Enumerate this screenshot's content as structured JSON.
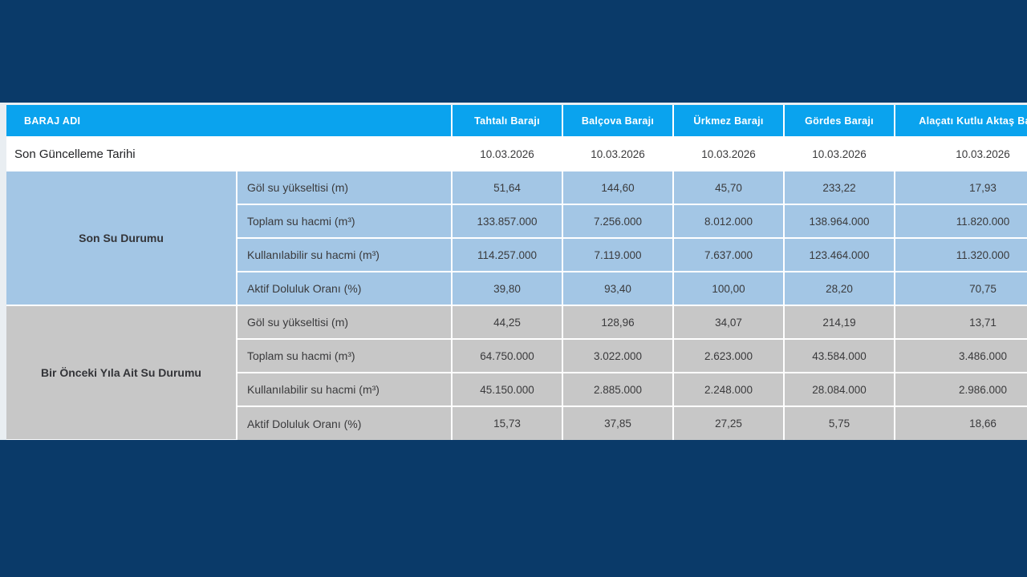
{
  "colors": {
    "page_background": "#0a3a69",
    "header_blue": "#0aa3ee",
    "section_recent_blue": "#a3c6e5",
    "section_previous_gray": "#c7c7c7",
    "gutter_light": "#e9eef2",
    "cell_border": "#ffffff",
    "text_dark": "#3a3a3c"
  },
  "table": {
    "header": {
      "label_col": "BARAJ ADI",
      "columns": [
        "Tahtalı Barajı",
        "Balçova Barajı",
        "Ürkmez Barajı",
        "Gördes Barajı",
        "Alaçatı Kutlu Aktaş Barajı"
      ]
    },
    "update_row": {
      "label": "Son Güncelleme Tarihi",
      "values": [
        "10.03.2026",
        "10.03.2026",
        "10.03.2026",
        "10.03.2026",
        "10.03.2026"
      ]
    },
    "sections": [
      {
        "label": "Son Su Durumu",
        "rows": [
          {
            "label": "Göl su yükseltisi (m)",
            "values": [
              "51,64",
              "144,60",
              "45,70",
              "233,22",
              "17,93"
            ]
          },
          {
            "label": "Toplam su hacmi (m³)",
            "values": [
              "133.857.000",
              "7.256.000",
              "8.012.000",
              "138.964.000",
              "11.820.000"
            ]
          },
          {
            "label": "Kullanılabilir su hacmi (m³)",
            "values": [
              "114.257.000",
              "7.119.000",
              "7.637.000",
              "123.464.000",
              "11.320.000"
            ]
          },
          {
            "label": "Aktif Doluluk Oranı (%)",
            "values": [
              "39,80",
              "93,40",
              "100,00",
              "28,20",
              "70,75"
            ]
          }
        ]
      },
      {
        "label": "Bir Önceki Yıla Ait Su Durumu",
        "rows": [
          {
            "label": "Göl su yükseltisi (m)",
            "values": [
              "44,25",
              "128,96",
              "34,07",
              "214,19",
              "13,71"
            ]
          },
          {
            "label": "Toplam su hacmi (m³)",
            "values": [
              "64.750.000",
              "3.022.000",
              "2.623.000",
              "43.584.000",
              "3.486.000"
            ]
          },
          {
            "label": "Kullanılabilir su hacmi (m³)",
            "values": [
              "45.150.000",
              "2.885.000",
              "2.248.000",
              "28.084.000",
              "2.986.000"
            ]
          },
          {
            "label": "Aktif Doluluk Oranı (%)",
            "values": [
              "15,73",
              "37,85",
              "27,25",
              "5,75",
              "18,66"
            ]
          }
        ]
      }
    ]
  }
}
